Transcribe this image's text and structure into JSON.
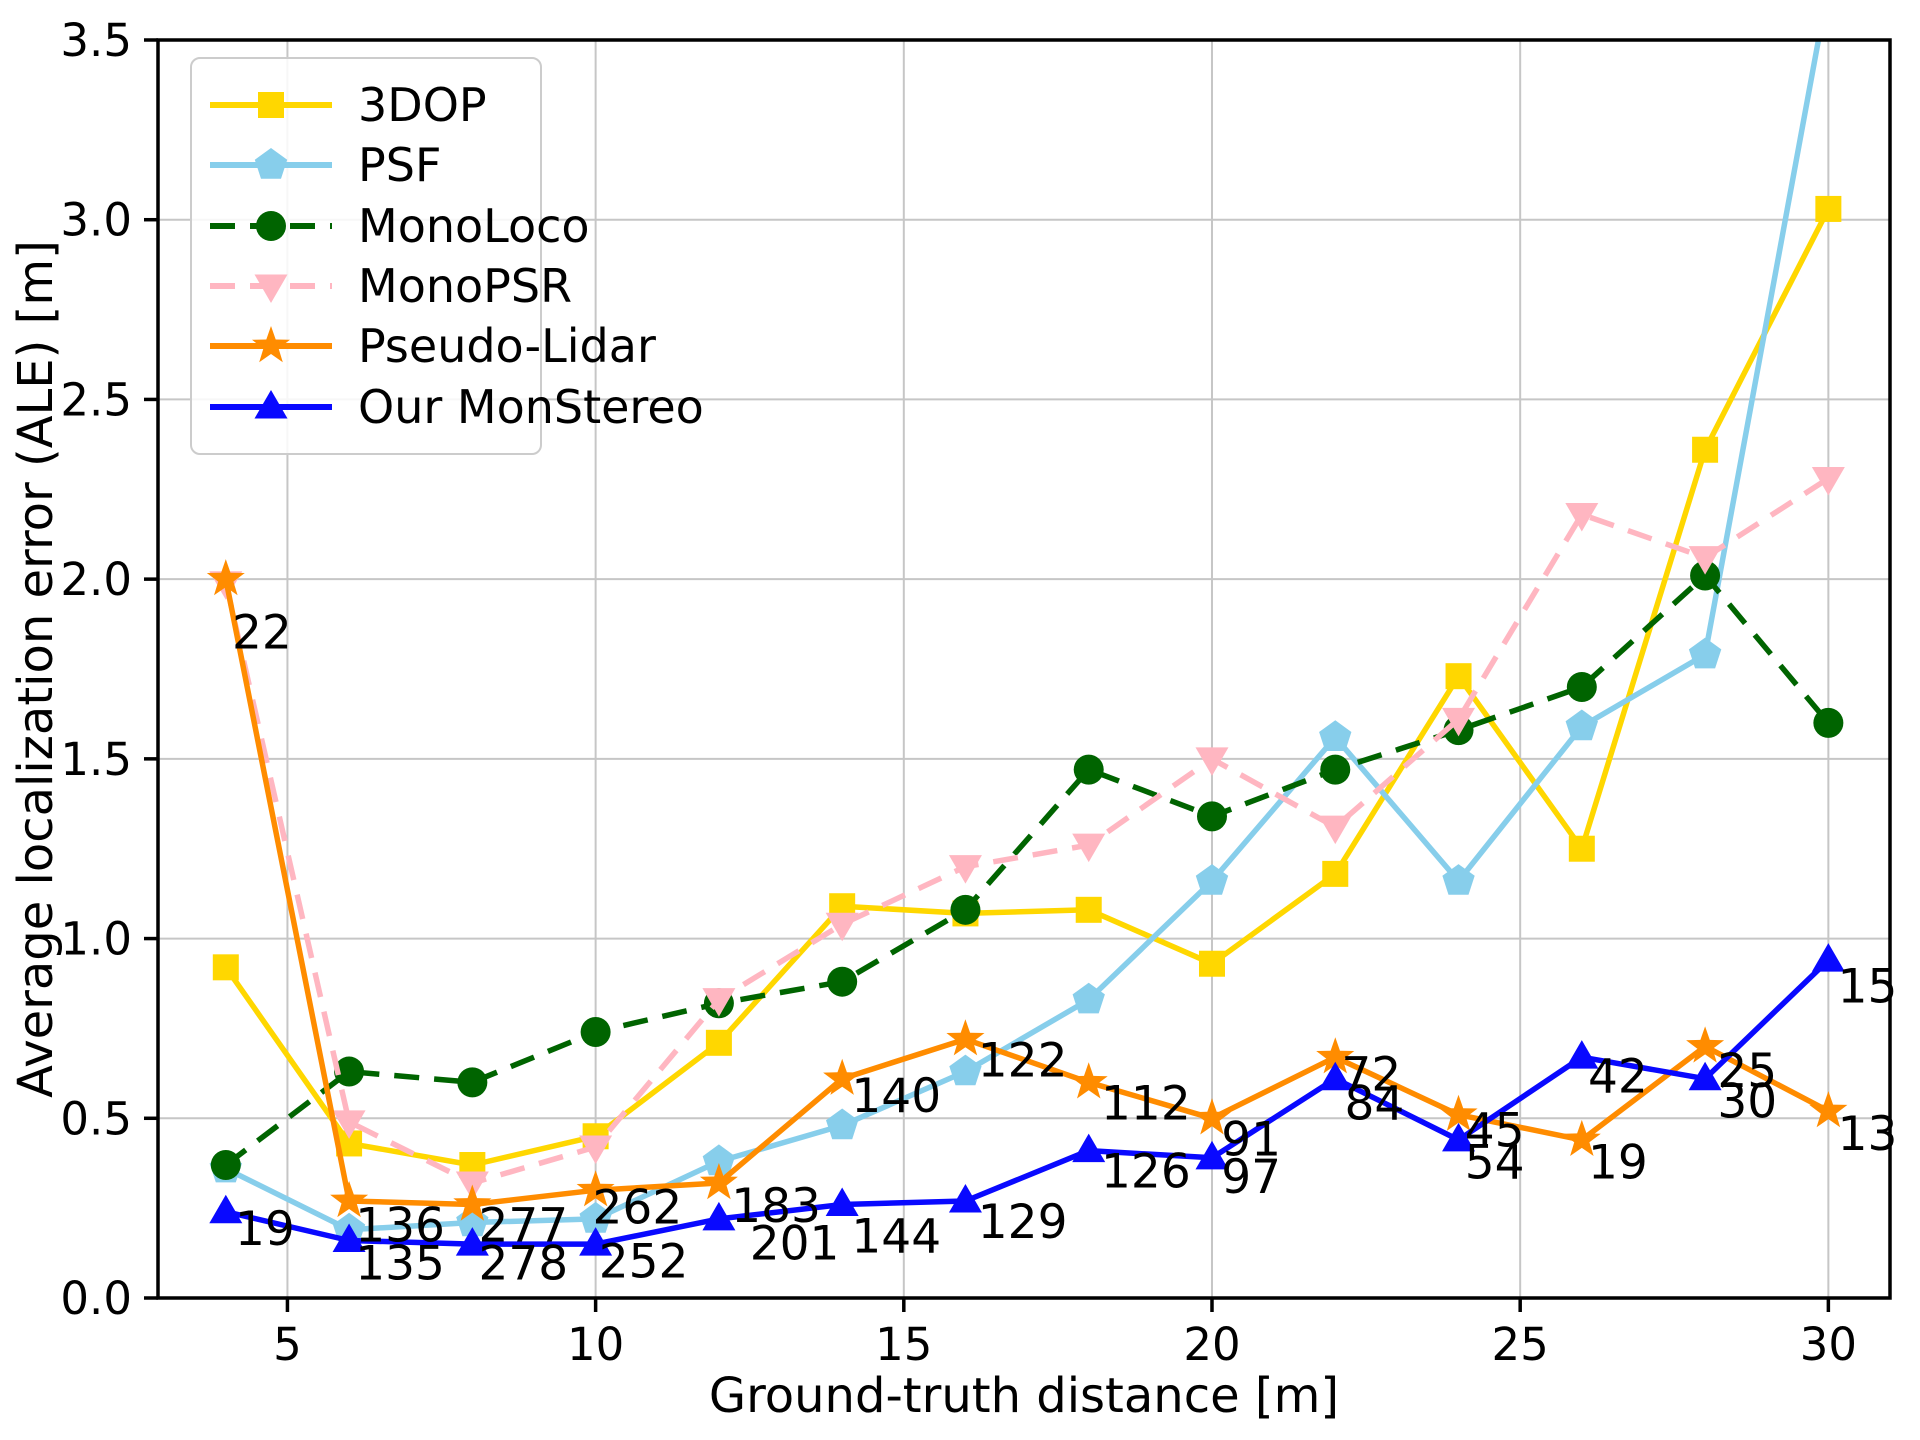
{
  "figure": {
    "xlabel": "Ground-truth distance [m]",
    "ylabel": "Average localization error (ALE) [m]"
  },
  "chart_data": {
    "type": "line",
    "title": "",
    "xlabel": "Ground-truth distance [m]",
    "ylabel": "Average localization error (ALE) [m]",
    "xlim": [
      2.9,
      31.0
    ],
    "ylim": [
      0.0,
      3.5
    ],
    "x_ticks": [
      5,
      10,
      15,
      20,
      25,
      30
    ],
    "y_ticks": [
      0.0,
      0.5,
      1.0,
      1.5,
      2.0,
      2.5,
      3.0,
      3.5
    ],
    "grid": true,
    "legend_position": "upper left",
    "x": [
      4,
      6,
      8,
      10,
      12,
      14,
      16,
      18,
      20,
      22,
      24,
      26,
      28,
      30
    ],
    "series": [
      {
        "name": "3DOP",
        "color": "#FFD700",
        "marker": "square",
        "linestyle": "solid",
        "values": [
          0.92,
          0.43,
          0.37,
          0.45,
          0.71,
          1.09,
          1.07,
          1.08,
          0.93,
          1.18,
          1.73,
          1.25,
          2.36,
          3.03
        ]
      },
      {
        "name": "PSF",
        "color": "#87CEEB",
        "marker": "pentagon",
        "linestyle": "solid",
        "values": [
          0.36,
          0.19,
          0.21,
          0.22,
          0.38,
          0.48,
          0.63,
          0.83,
          1.16,
          1.56,
          1.16,
          1.59,
          1.79,
          3.65
        ]
      },
      {
        "name": "MonoLoco",
        "color": "#006400",
        "marker": "circle",
        "linestyle": "dashed",
        "values": [
          0.37,
          0.63,
          0.6,
          0.74,
          0.82,
          0.88,
          1.08,
          1.47,
          1.34,
          1.47,
          1.58,
          1.7,
          2.01,
          1.6
        ]
      },
      {
        "name": "MonoPSR",
        "color": "#FFB6C1",
        "marker": "triangle-down",
        "linestyle": "dashed",
        "values": [
          1.99,
          0.49,
          0.32,
          0.42,
          0.83,
          1.04,
          1.2,
          1.26,
          1.5,
          1.31,
          1.61,
          2.18,
          2.06,
          2.28
        ]
      },
      {
        "name": "Pseudo-Lidar",
        "color": "#FF8C00",
        "marker": "star",
        "linestyle": "solid",
        "values": [
          2.0,
          0.27,
          0.26,
          0.3,
          0.32,
          0.61,
          0.72,
          0.6,
          0.5,
          0.67,
          0.51,
          0.44,
          0.7,
          0.52
        ]
      },
      {
        "name": "Our MonStereo",
        "color": "#0909FF",
        "marker": "triangle-up",
        "linestyle": "solid",
        "values": [
          0.24,
          0.16,
          0.15,
          0.15,
          0.22,
          0.26,
          0.27,
          0.41,
          0.39,
          0.61,
          0.44,
          0.67,
          0.61,
          0.94
        ]
      }
    ],
    "annotations": [
      {
        "x": 4.1,
        "y": 1.85,
        "text": "22"
      },
      {
        "x": 4.15,
        "y": 0.19,
        "text": "19"
      },
      {
        "x": 6.1,
        "y": 0.2,
        "text": "136"
      },
      {
        "x": 6.1,
        "y": 0.095,
        "text": "135"
      },
      {
        "x": 8.1,
        "y": 0.2,
        "text": "277"
      },
      {
        "x": 8.1,
        "y": 0.095,
        "text": "278"
      },
      {
        "x": 9.95,
        "y": 0.25,
        "text": "262"
      },
      {
        "x": 10.05,
        "y": 0.1,
        "text": "252"
      },
      {
        "x": 12.2,
        "y": 0.255,
        "text": "183"
      },
      {
        "x": 12.5,
        "y": 0.15,
        "text": "201"
      },
      {
        "x": 14.15,
        "y": 0.56,
        "text": "140"
      },
      {
        "x": 14.15,
        "y": 0.17,
        "text": "144"
      },
      {
        "x": 16.2,
        "y": 0.66,
        "text": "122"
      },
      {
        "x": 16.2,
        "y": 0.21,
        "text": "129"
      },
      {
        "x": 18.2,
        "y": 0.54,
        "text": "112"
      },
      {
        "x": 18.2,
        "y": 0.35,
        "text": "126"
      },
      {
        "x": 20.15,
        "y": 0.44,
        "text": "91"
      },
      {
        "x": 20.15,
        "y": 0.335,
        "text": "97"
      },
      {
        "x": 22.1,
        "y": 0.62,
        "text": "72"
      },
      {
        "x": 22.15,
        "y": 0.54,
        "text": "84"
      },
      {
        "x": 24.1,
        "y": 0.465,
        "text": "45"
      },
      {
        "x": 24.1,
        "y": 0.375,
        "text": "54"
      },
      {
        "x": 26.1,
        "y": 0.615,
        "text": "42"
      },
      {
        "x": 26.1,
        "y": 0.375,
        "text": "19"
      },
      {
        "x": 28.2,
        "y": 0.63,
        "text": "25"
      },
      {
        "x": 28.2,
        "y": 0.545,
        "text": "30"
      },
      {
        "x": 30.15,
        "y": 0.865,
        "text": "15"
      },
      {
        "x": 30.15,
        "y": 0.455,
        "text": "13"
      }
    ]
  }
}
